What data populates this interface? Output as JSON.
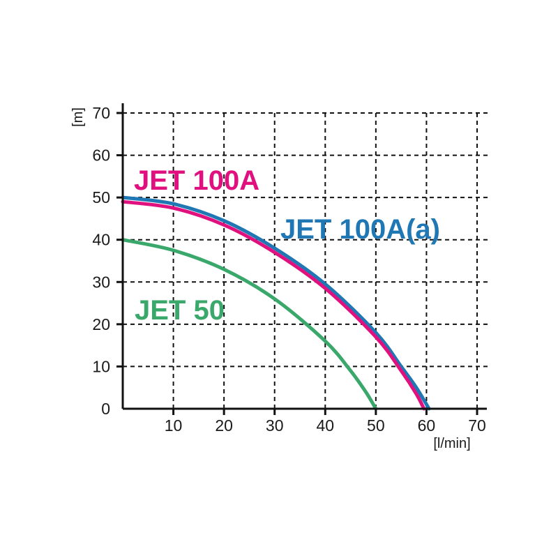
{
  "chart_data": {
    "type": "line",
    "xlabel": "[l/min]",
    "ylabel": "[m]",
    "xlim": [
      0,
      70
    ],
    "ylim": [
      0,
      70
    ],
    "x_ticks": [
      "10",
      "20",
      "30",
      "40",
      "50",
      "60",
      "70"
    ],
    "y_ticks": [
      "0",
      "10",
      "20",
      "30",
      "40",
      "50",
      "60",
      "70"
    ],
    "grid": true,
    "series": [
      {
        "name": "JET 100A(a)",
        "color": "#1f77b4",
        "x": [
          0,
          10,
          20,
          30,
          40,
          50,
          55,
          58,
          60.5
        ],
        "y": [
          50,
          48.5,
          44.5,
          38,
          29.5,
          18,
          10,
          5,
          0
        ]
      },
      {
        "name": "JET 100A",
        "color": "#e0117f",
        "x": [
          0,
          10,
          20,
          30,
          40,
          50,
          55,
          58,
          59.5
        ],
        "y": [
          49,
          47.5,
          43.5,
          37,
          28.5,
          17,
          9,
          3.5,
          0
        ]
      },
      {
        "name": "JET 50",
        "color": "#3aa86b",
        "x": [
          0,
          10,
          20,
          30,
          40,
          45,
          48,
          50
        ],
        "y": [
          40,
          37.5,
          33,
          26,
          16,
          9,
          4,
          0
        ]
      }
    ]
  }
}
